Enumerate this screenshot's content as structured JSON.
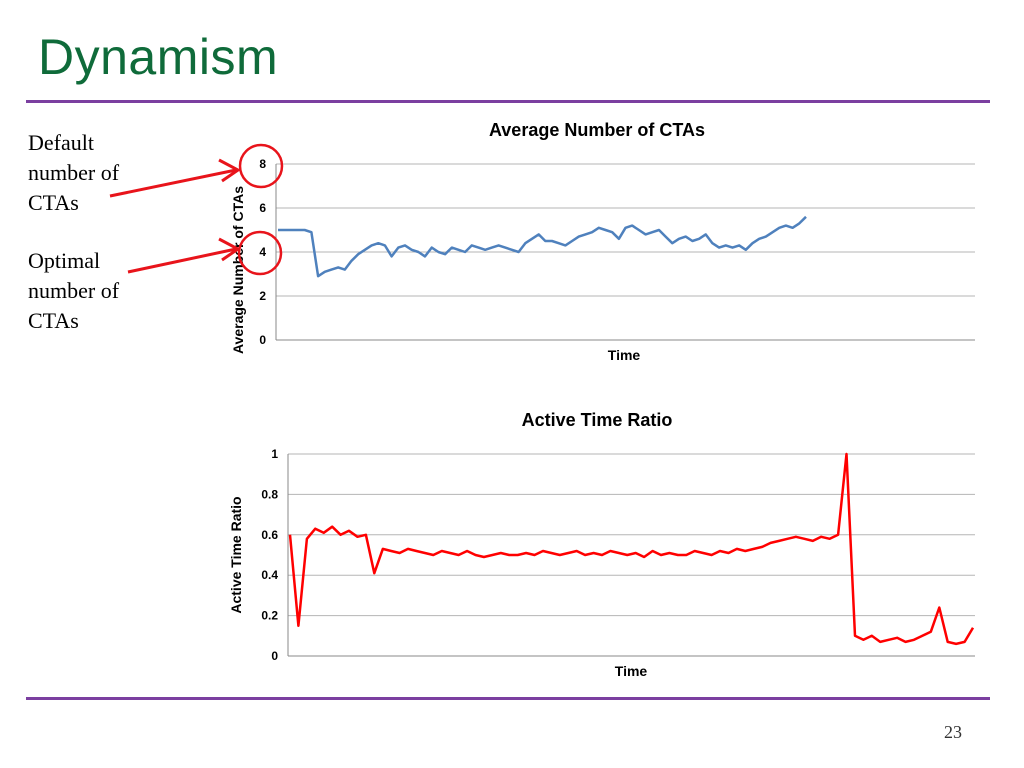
{
  "slide": {
    "title": "Dynamism",
    "page_number": "23",
    "accent_color": "#7b3fa0",
    "title_color": "#0f6b3a"
  },
  "annotations": {
    "default_label": "Default number of CTAs",
    "optimal_label": "Optimal number of CTAs",
    "arrow_color": "#e8141b",
    "marker": "circle-highlight"
  },
  "chart_data": [
    {
      "type": "line",
      "title": "Average Number of CTAs",
      "xlabel": "Time",
      "ylabel": "Average Number of CTAs",
      "ylim": [
        0,
        8
      ],
      "yticks": [
        "0",
        "2",
        "4",
        "6",
        "8"
      ],
      "grid": true,
      "color": "#4f81bd",
      "highlighted_values": [
        8,
        4
      ],
      "series": [
        {
          "values": [
            5,
            5,
            5,
            5,
            5,
            4.9,
            2.9,
            3.1,
            3.2,
            3.3,
            3.2,
            3.6,
            3.9,
            4.1,
            4.3,
            4.4,
            4.3,
            3.8,
            4.2,
            4.3,
            4.1,
            4.0,
            3.8,
            4.2,
            4.0,
            3.9,
            4.2,
            4.1,
            4.0,
            4.3,
            4.2,
            4.1,
            4.2,
            4.3,
            4.2,
            4.1,
            4.0,
            4.4,
            4.6,
            4.8,
            4.5,
            4.5,
            4.4,
            4.3,
            4.5,
            4.7,
            4.8,
            4.9,
            5.1,
            5.0,
            4.9,
            4.6,
            5.1,
            5.2,
            5.0,
            4.8,
            4.9,
            5.0,
            4.7,
            4.4,
            4.6,
            4.7,
            4.5,
            4.6,
            4.8,
            4.4,
            4.2,
            4.3,
            4.2,
            4.3,
            4.1,
            4.4,
            4.6,
            4.7,
            4.9,
            5.1,
            5.2,
            5.1,
            5.3,
            5.6
          ]
        }
      ]
    },
    {
      "type": "line",
      "title": "Active Time Ratio",
      "xlabel": "Time",
      "ylabel": "Active Time Ratio",
      "ylim": [
        0,
        1
      ],
      "yticks": [
        "0",
        "0.2",
        "0.4",
        "0.6",
        "0.8",
        "1"
      ],
      "grid": true,
      "color": "#ff0000",
      "series": [
        {
          "values": [
            0.6,
            0.15,
            0.58,
            0.63,
            0.61,
            0.64,
            0.6,
            0.62,
            0.59,
            0.6,
            0.41,
            0.53,
            0.52,
            0.51,
            0.53,
            0.52,
            0.51,
            0.5,
            0.52,
            0.51,
            0.5,
            0.52,
            0.5,
            0.49,
            0.5,
            0.51,
            0.5,
            0.5,
            0.51,
            0.5,
            0.52,
            0.51,
            0.5,
            0.51,
            0.52,
            0.5,
            0.51,
            0.5,
            0.52,
            0.51,
            0.5,
            0.51,
            0.49,
            0.52,
            0.5,
            0.51,
            0.5,
            0.5,
            0.52,
            0.51,
            0.5,
            0.52,
            0.51,
            0.53,
            0.52,
            0.53,
            0.54,
            0.56,
            0.57,
            0.58,
            0.59,
            0.58,
            0.57,
            0.59,
            0.58,
            0.6,
            1.0,
            0.1,
            0.08,
            0.1,
            0.07,
            0.08,
            0.09,
            0.07,
            0.08,
            0.1,
            0.12,
            0.24,
            0.07,
            0.06,
            0.07,
            0.14
          ]
        }
      ]
    }
  ]
}
